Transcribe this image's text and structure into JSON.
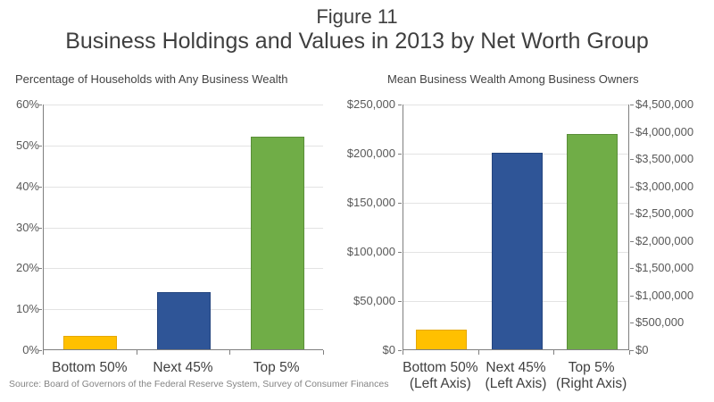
{
  "header": {
    "figure_label": "Figure 11",
    "title": "Business Holdings and Values in 2013 by Net Worth Group"
  },
  "source": "Source: Board of Governors of the Federal Reserve System, Survey of Consumer Finances",
  "palette": {
    "bottom50": "#FFC000",
    "next45": "#2F5597",
    "top5": "#70AD47",
    "bottom50_border": "#E6A800",
    "next45_border": "#24457F",
    "top5_border": "#5A8E39",
    "axis_line": "#7F7F7F",
    "gridline": "#E3E3E3",
    "tick_text": "#595959",
    "title_text": "#3F3F3F"
  },
  "chart_data": [
    {
      "type": "bar",
      "title": "Percentage of Households with Any Business Wealth",
      "categories": [
        "Bottom 50%",
        "Next 45%",
        "Top 5%"
      ],
      "values": [
        3.3,
        14,
        52
      ],
      "value_format": "percent",
      "xlabel": "",
      "ylabel": "",
      "ylim": [
        0,
        60
      ],
      "ytick_step": 10,
      "grid": true,
      "legend": "none",
      "bar_colors": [
        "#FFC000",
        "#2F5597",
        "#70AD47"
      ],
      "bar_border_colors": [
        "#E6A800",
        "#24457F",
        "#5A8E39"
      ]
    },
    {
      "type": "bar",
      "title": "Mean Business Wealth Among Business Owners",
      "categories": [
        "Bottom 50%",
        "Next 45%",
        "Top 5%"
      ],
      "category_sublabels": [
        "(Left Axis)",
        "(Left Axis)",
        "(Right Axis)"
      ],
      "values": [
        20000,
        200000,
        3950000
      ],
      "value_axis": [
        "left",
        "left",
        "right"
      ],
      "value_format": "currency",
      "xlabel": "",
      "left_axis": {
        "lim": [
          0,
          250000
        ],
        "tick_step": 50000
      },
      "right_axis": {
        "lim": [
          0,
          4500000
        ],
        "tick_step": 500000
      },
      "grid": true,
      "legend": "none",
      "bar_colors": [
        "#FFC000",
        "#2F5597",
        "#70AD47"
      ],
      "bar_border_colors": [
        "#E6A800",
        "#24457F",
        "#5A8E39"
      ]
    }
  ]
}
